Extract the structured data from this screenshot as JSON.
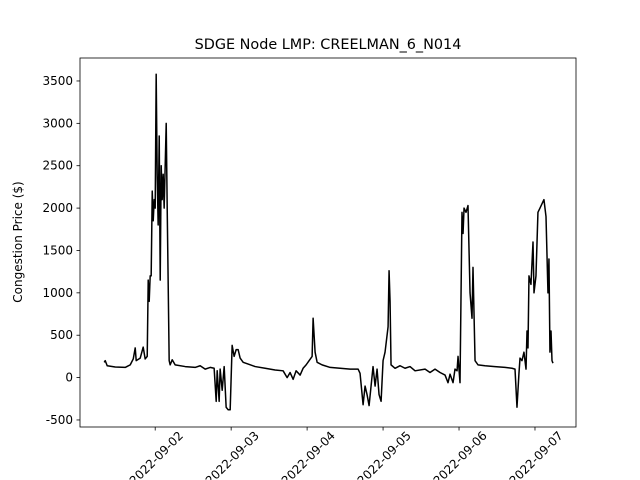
{
  "chart_data": {
    "type": "line",
    "title": "SDGE Node LMP: CREELMAN_6_N014",
    "y_label": "Congestion Price ($)",
    "x": [
      19236.329,
      19236.342,
      19236.368,
      19236.474,
      19236.605,
      19236.671,
      19236.711,
      19236.737,
      19236.75,
      19236.803,
      19236.842,
      19236.868,
      19236.895,
      19236.908,
      19236.921,
      19236.934,
      19236.947,
      19236.961,
      19236.974,
      19236.987,
      19237.0,
      19237.013,
      19237.026,
      19237.039,
      19237.053,
      19237.066,
      19237.079,
      19237.092,
      19237.105,
      19237.118,
      19237.145,
      19237.158,
      19237.171,
      19237.184,
      19237.197,
      19237.224,
      19237.263,
      19237.395,
      19237.526,
      19237.592,
      19237.658,
      19237.724,
      19237.776,
      19237.803,
      19237.816,
      19237.842,
      19237.855,
      19237.882,
      19237.908,
      19237.934,
      19237.961,
      19237.987,
      19238.013,
      19238.039,
      19238.066,
      19238.092,
      19238.118,
      19238.158,
      19238.224,
      19238.316,
      19238.447,
      19238.579,
      19238.684,
      19238.737,
      19238.776,
      19238.816,
      19238.855,
      19238.908,
      19238.947,
      19238.987,
      19239.026,
      19239.066,
      19239.079,
      19239.105,
      19239.132,
      19239.197,
      19239.303,
      19239.434,
      19239.566,
      19239.671,
      19239.697,
      19239.737,
      19239.763,
      19239.789,
      19239.816,
      19239.842,
      19239.868,
      19239.895,
      19239.921,
      19239.947,
      19239.974,
      19240.0,
      19240.026,
      19240.066,
      19240.079,
      19240.092,
      19240.105,
      19240.158,
      19240.224,
      19240.289,
      19240.355,
      19240.421,
      19240.553,
      19240.618,
      19240.684,
      19240.75,
      19240.816,
      19240.855,
      19240.882,
      19240.921,
      19240.947,
      19240.974,
      19240.987,
      19241.013,
      19241.039,
      19241.053,
      19241.066,
      19241.092,
      19241.118,
      19241.145,
      19241.171,
      19241.184,
      19241.211,
      19241.25,
      19241.342,
      19241.474,
      19241.605,
      19241.697,
      19241.737,
      19241.763,
      19241.789,
      19241.803,
      19241.829,
      19241.855,
      19241.882,
      19241.895,
      19241.908,
      19241.921,
      19241.947,
      19241.974,
      19241.987,
      19242.013,
      19242.039,
      19242.066,
      19242.118,
      19242.145,
      19242.171,
      19242.184,
      19242.197,
      19242.211,
      19242.224,
      19242.237
    ],
    "series": [
      {
        "color": "#000000",
        "values": [
          180,
          200,
          140,
          125,
          120,
          150,
          220,
          350,
          200,
          230,
          360,
          220,
          250,
          1150,
          900,
          1200,
          1200,
          2200,
          1850,
          2100,
          2000,
          3580,
          2400,
          1800,
          2850,
          1150,
          2500,
          2100,
          2400,
          2000,
          3000,
          2000,
          1100,
          200,
          150,
          210,
          150,
          130,
          120,
          140,
          100,
          120,
          110,
          -280,
          80,
          -280,
          100,
          -150,
          130,
          -350,
          -380,
          -380,
          380,
          250,
          330,
          330,
          230,
          180,
          160,
          130,
          110,
          90,
          80,
          0,
          60,
          -20,
          80,
          30,
          110,
          150,
          200,
          250,
          700,
          300,
          180,
          150,
          120,
          110,
          100,
          100,
          50,
          -320,
          -100,
          -200,
          -330,
          -100,
          130,
          -100,
          100,
          -200,
          -280,
          200,
          300,
          600,
          1260,
          900,
          150,
          110,
          140,
          110,
          130,
          80,
          100,
          60,
          100,
          60,
          30,
          -60,
          40,
          -60,
          100,
          80,
          250,
          -60,
          1950,
          1700,
          2000,
          1950,
          2030,
          1000,
          700,
          1300,
          200,
          150,
          140,
          130,
          120,
          110,
          100,
          -350,
          50,
          230,
          200,
          300,
          100,
          550,
          350,
          1200,
          1100,
          1600,
          1000,
          1200,
          1950,
          2000,
          2100,
          1900,
          1000,
          1400,
          300,
          550,
          200,
          170
        ]
      }
    ],
    "xlim": [
      19236.01,
      19242.54
    ],
    "xticks": [
      {
        "value": 19237,
        "label": "2022-09-02"
      },
      {
        "value": 19238,
        "label": "2022-09-03"
      },
      {
        "value": 19239,
        "label": "2022-09-04"
      },
      {
        "value": 19240,
        "label": "2022-09-05"
      },
      {
        "value": 19241,
        "label": "2022-09-06"
      },
      {
        "value": 19242,
        "label": "2022-09-07"
      }
    ],
    "ylim": [
      -583,
      3771
    ],
    "yticks": [
      -500,
      0,
      500,
      1000,
      1500,
      2000,
      2500,
      3000,
      3500
    ]
  }
}
